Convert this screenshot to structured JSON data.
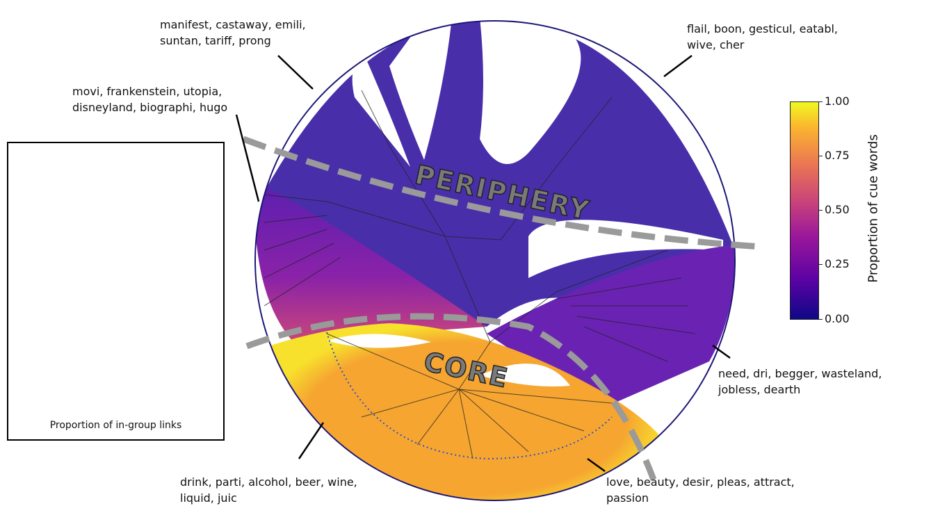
{
  "regions": {
    "periphery_label": "PERIPHERY",
    "core_label": "CORE"
  },
  "annotations": [
    {
      "text": "manifest, castaway, emili,\nsuntan, tariff, prong"
    },
    {
      "text": "flail, boon, gesticul, eatabl,\nwive, cher"
    },
    {
      "text": "movi, frankenstein, utopia,\ndisneyland, biographi, hugo"
    },
    {
      "text": "need, dri, begger, wasteland,\njobless, dearth"
    },
    {
      "text": "drink, parti, alcohol, beer, wine,\nliquid, juic"
    },
    {
      "text": "love, beauty, desir, pleas, attract,\npassion"
    }
  ],
  "inset": {
    "caption": "Proportion of in-group links"
  },
  "colorbar": {
    "title": "Proportion of cue words",
    "ticks": [
      "1.00",
      "0.75",
      "0.50",
      "0.25",
      "0.00"
    ],
    "colormap": [
      "#0d0887",
      "#5b02a3",
      "#9a179b",
      "#cb4678",
      "#eb7852",
      "#fbb32f",
      "#f0f921"
    ]
  },
  "colors": {
    "periphery": "#2f1a9a",
    "mid": "#7a1fb0",
    "core": "#f7c93a",
    "divider": "#9a9a9a",
    "edges": "#222222"
  }
}
